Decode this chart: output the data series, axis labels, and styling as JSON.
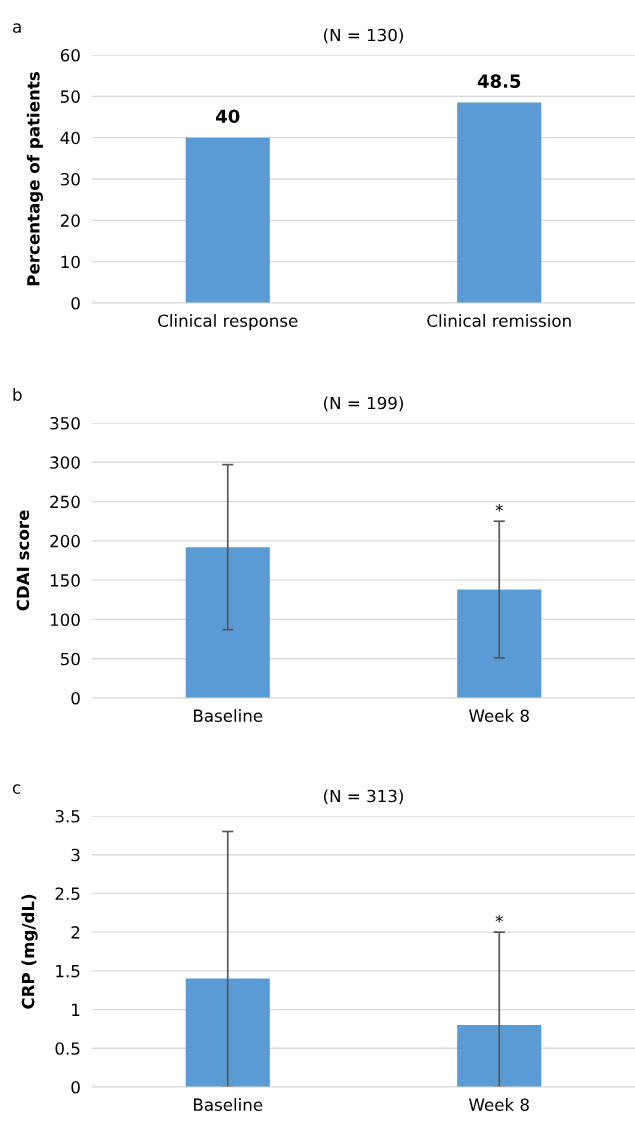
{
  "chart_data": [
    {
      "type": "bar",
      "title": "(N = 130)",
      "ylabel": "Percentage of patients",
      "categories": [
        "Clinical response",
        "Clinical remission"
      ],
      "values": [
        40,
        48.5
      ],
      "color": "#5b9bd5",
      "ylim": [
        0,
        60
      ],
      "yticks": [
        0,
        10,
        20,
        30,
        40,
        50,
        60
      ],
      "grid": "y",
      "data_labels": true,
      "annotations": [
        "a"
      ]
    },
    {
      "type": "bar",
      "title": "(N = 199)",
      "ylabel": "CDAI score",
      "categories": [
        "Baseline",
        "Week 8"
      ],
      "values": [
        192,
        138
      ],
      "errors": [
        105,
        87
      ],
      "color": "#5b9bd5",
      "ylim": [
        0,
        350
      ],
      "yticks": [
        0,
        50,
        100,
        150,
        200,
        250,
        300,
        350
      ],
      "grid": "y",
      "annotations": [
        "b",
        {
          "text": "*",
          "x": "Week 8",
          "y": 225
        }
      ]
    },
    {
      "type": "bar",
      "title": "(N = 313)",
      "ylabel": "CRP (mg/dL)",
      "categories": [
        "Baseline",
        "Week 8"
      ],
      "values": [
        1.4,
        0.8
      ],
      "errors": [
        [
          0,
          3.3
        ],
        [
          0,
          2.0
        ]
      ],
      "color": "#5b9bd5",
      "ylim": [
        0,
        3.5
      ],
      "yticks": [
        0,
        0.5,
        1,
        1.5,
        2,
        2.5,
        3,
        3.5
      ],
      "grid": "y",
      "annotations": [
        "c",
        {
          "text": "*",
          "x": "Week 8",
          "y": 2.0
        }
      ]
    }
  ]
}
